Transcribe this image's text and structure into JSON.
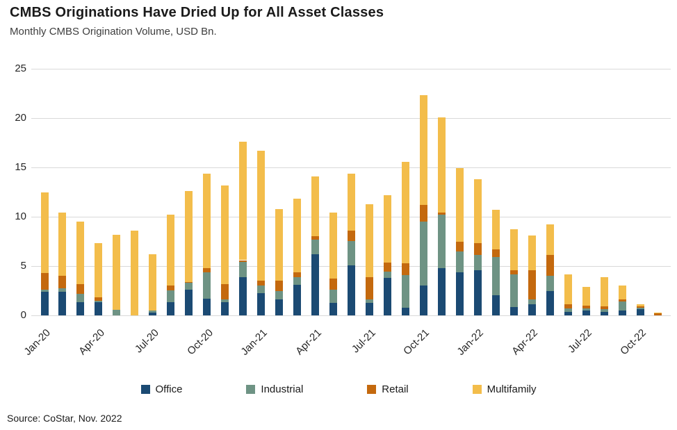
{
  "header": {
    "title": "CMBS Originations Have Dried Up for All Asset Classes",
    "subtitle": "Monthly CMBS Origination Volume, USD Bn."
  },
  "source": "Source: CoStar, Nov. 2022",
  "colors": {
    "office": "#1b4a73",
    "industrial": "#6e9384",
    "retail": "#c4690e",
    "multifamily": "#f3bd4b",
    "gridline": "#d9d9d9",
    "text": "#262626"
  },
  "chart_data": {
    "type": "bar",
    "stacked": true,
    "title": "CMBS Originations Have Dried Up for All Asset Classes",
    "subtitle": "Monthly CMBS Origination Volume, USD Bn.",
    "xlabel": "",
    "ylabel": "USD Bn.",
    "ylim": [
      0,
      25
    ],
    "yticks": [
      0,
      5,
      10,
      15,
      20,
      25
    ],
    "grid": true,
    "legend_position": "bottom",
    "categories": [
      "Jan-20",
      "Feb-20",
      "Mar-20",
      "Apr-20",
      "May-20",
      "Jun-20",
      "Jul-20",
      "Aug-20",
      "Sep-20",
      "Oct-20",
      "Nov-20",
      "Dec-20",
      "Jan-21",
      "Feb-21",
      "Mar-21",
      "Apr-21",
      "May-21",
      "Jun-21",
      "Jul-21",
      "Aug-21",
      "Sep-21",
      "Oct-21",
      "Nov-21",
      "Dec-21",
      "Jan-22",
      "Feb-22",
      "Mar-22",
      "Apr-22",
      "May-22",
      "Jun-22",
      "Jul-22",
      "Aug-22",
      "Sep-22",
      "Oct-22",
      "Nov-22"
    ],
    "x_tick_shown_every": 3,
    "x_tick_labels": [
      "Jan-20",
      "Apr-20",
      "Jul-20",
      "Oct-20",
      "Jan-21",
      "Apr-21",
      "Jul-21",
      "Oct-21",
      "Jan-22",
      "Apr-22",
      "Jul-22",
      "Oct-22"
    ],
    "series": [
      {
        "name": "Office",
        "color": "#1b4a73",
        "values": [
          2.4,
          2.4,
          1.35,
          1.35,
          0,
          0,
          0.3,
          1.35,
          2.6,
          1.7,
          1.35,
          3.9,
          2.25,
          1.6,
          3.1,
          6.2,
          1.3,
          5.1,
          1.3,
          3.8,
          0.8,
          3.0,
          4.8,
          4.4,
          4.55,
          2.05,
          0.85,
          1.1,
          2.45,
          0.35,
          0.5,
          0.35,
          0.5,
          0.6,
          0
        ]
      },
      {
        "name": "Industrial",
        "color": "#6e9384",
        "values": [
          0.2,
          0.35,
          0.85,
          0.15,
          0.55,
          0,
          0.2,
          1.2,
          0.7,
          2.65,
          0.3,
          1.5,
          0.75,
          0.85,
          0.8,
          1.5,
          1.3,
          2.45,
          0.3,
          0.65,
          3.3,
          6.5,
          5.4,
          2.05,
          1.55,
          3.85,
          3.3,
          0.55,
          1.6,
          0.35,
          0.2,
          0.25,
          0.9,
          0.15,
          0
        ]
      },
      {
        "name": "Retail",
        "color": "#c4690e",
        "values": [
          1.7,
          1.25,
          1.0,
          0.3,
          0,
          0,
          0,
          0.5,
          0.1,
          0.45,
          1.55,
          0.2,
          0.5,
          1.1,
          0.5,
          0.35,
          1.15,
          1.05,
          2.3,
          0.9,
          1.2,
          1.7,
          0.25,
          1.0,
          1.25,
          0.8,
          0.4,
          2.9,
          2.05,
          0.4,
          0.3,
          0.35,
          0.2,
          0.15,
          0.2
        ]
      },
      {
        "name": "Multifamily",
        "color": "#f3bd4b",
        "values": [
          8.2,
          6.4,
          6.3,
          5.5,
          7.65,
          8.6,
          5.7,
          7.15,
          9.2,
          9.6,
          10.0,
          12.0,
          13.2,
          7.25,
          7.4,
          6.05,
          6.65,
          5.8,
          7.4,
          6.85,
          10.3,
          11.1,
          9.65,
          7.45,
          6.45,
          4.0,
          4.15,
          3.55,
          3.1,
          3.05,
          1.9,
          2.95,
          1.4,
          0.2,
          0.1
        ]
      }
    ]
  }
}
